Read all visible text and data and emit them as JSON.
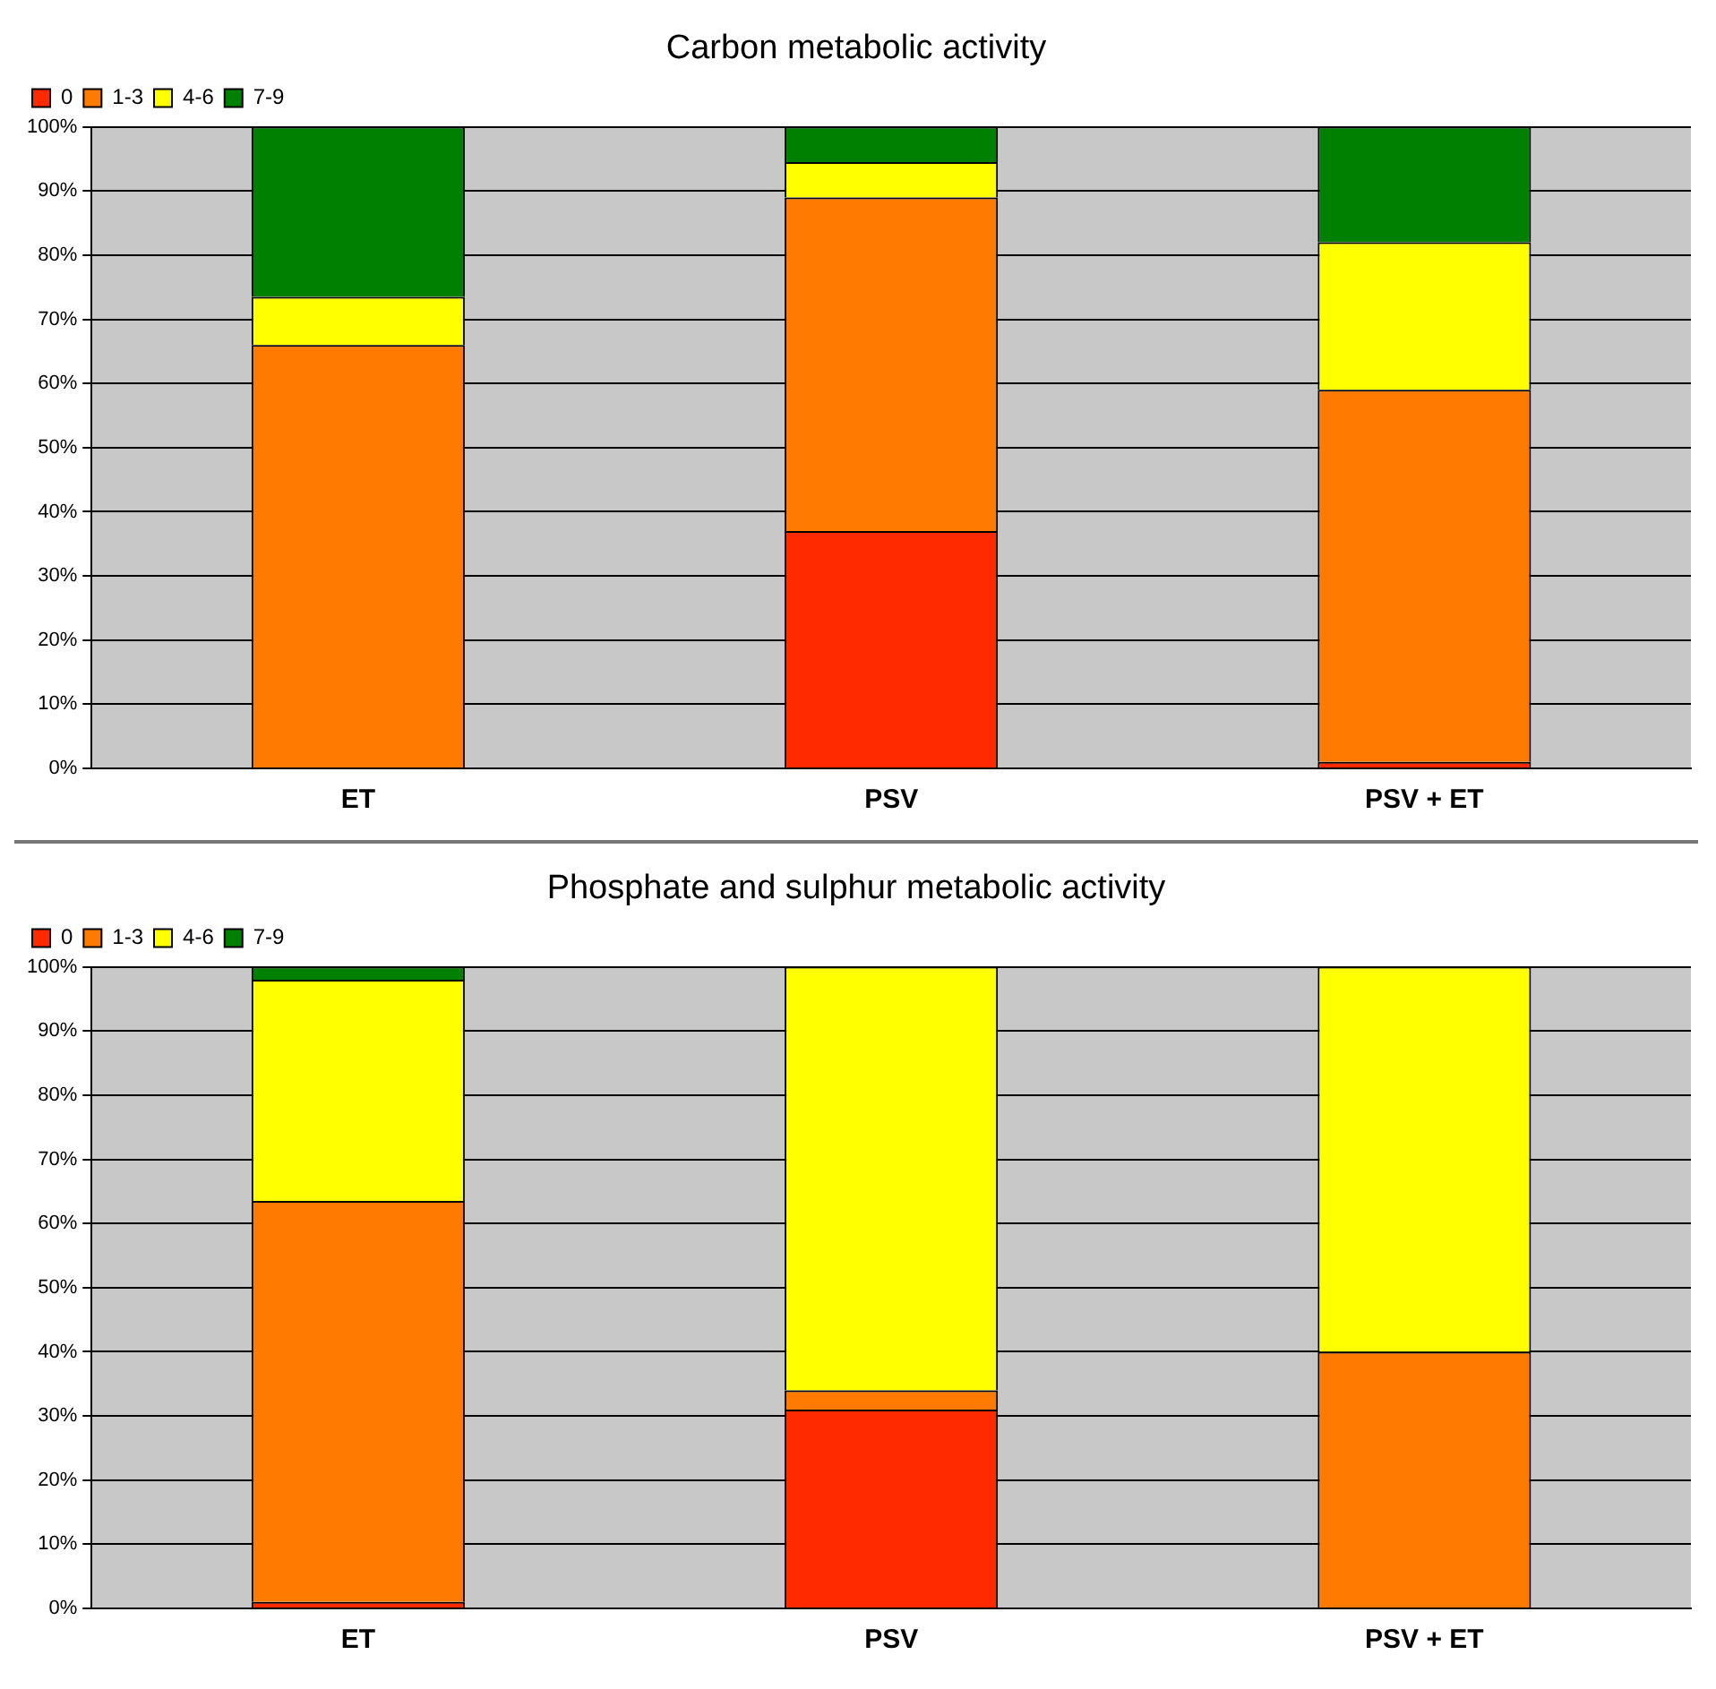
{
  "chart_data": [
    {
      "type": "bar",
      "title": "Carbon metabolic activity",
      "categories": [
        "ET",
        "PSV",
        "PSV + ET"
      ],
      "stacked": true,
      "legend": "top left",
      "grid": "y",
      "ylim": [
        0,
        100
      ],
      "yticks": [
        {
          "value": 0,
          "label": "0%"
        },
        {
          "value": 10,
          "label": "10%"
        },
        {
          "value": 20,
          "label": "20%"
        },
        {
          "value": 30,
          "label": "30%"
        },
        {
          "value": 40,
          "label": "40%"
        },
        {
          "value": 50,
          "label": "50%"
        },
        {
          "value": 60,
          "label": "60%"
        },
        {
          "value": 70,
          "label": "70%"
        },
        {
          "value": 80,
          "label": "80%"
        },
        {
          "value": 90,
          "label": "90%"
        },
        {
          "value": 100,
          "label": "100%"
        }
      ],
      "series": [
        {
          "name": "0",
          "color": "#ff2a00",
          "values": [
            0,
            37,
            1
          ]
        },
        {
          "name": "1-3",
          "color": "#ff7a00",
          "values": [
            66,
            52,
            58
          ]
        },
        {
          "name": "4-6",
          "color": "#ffff00",
          "values": [
            7.5,
            5.5,
            23
          ]
        },
        {
          "name": "7-9",
          "color": "#008000",
          "values": [
            26.5,
            5.5,
            18
          ]
        }
      ]
    },
    {
      "type": "bar",
      "title": "Phosphate and sulphur metabolic activity",
      "categories": [
        "ET",
        "PSV",
        "PSV + ET"
      ],
      "stacked": true,
      "legend": "top left",
      "grid": "y",
      "ylim": [
        0,
        100
      ],
      "yticks": [
        {
          "value": 0,
          "label": "0%"
        },
        {
          "value": 10,
          "label": "10%"
        },
        {
          "value": 20,
          "label": "20%"
        },
        {
          "value": 30,
          "label": "30%"
        },
        {
          "value": 40,
          "label": "40%"
        },
        {
          "value": 50,
          "label": "50%"
        },
        {
          "value": 60,
          "label": "60%"
        },
        {
          "value": 70,
          "label": "70%"
        },
        {
          "value": 80,
          "label": "80%"
        },
        {
          "value": 90,
          "label": "90%"
        },
        {
          "value": 100,
          "label": "100%"
        }
      ],
      "series": [
        {
          "name": "0",
          "color": "#ff2a00",
          "values": [
            1,
            31,
            0
          ]
        },
        {
          "name": "1-3",
          "color": "#ff7a00",
          "values": [
            62.5,
            3,
            40
          ]
        },
        {
          "name": "4-6",
          "color": "#ffff00",
          "values": [
            34.5,
            66,
            60
          ]
        },
        {
          "name": "7-9",
          "color": "#008000",
          "values": [
            2,
            0,
            0
          ]
        }
      ]
    }
  ]
}
